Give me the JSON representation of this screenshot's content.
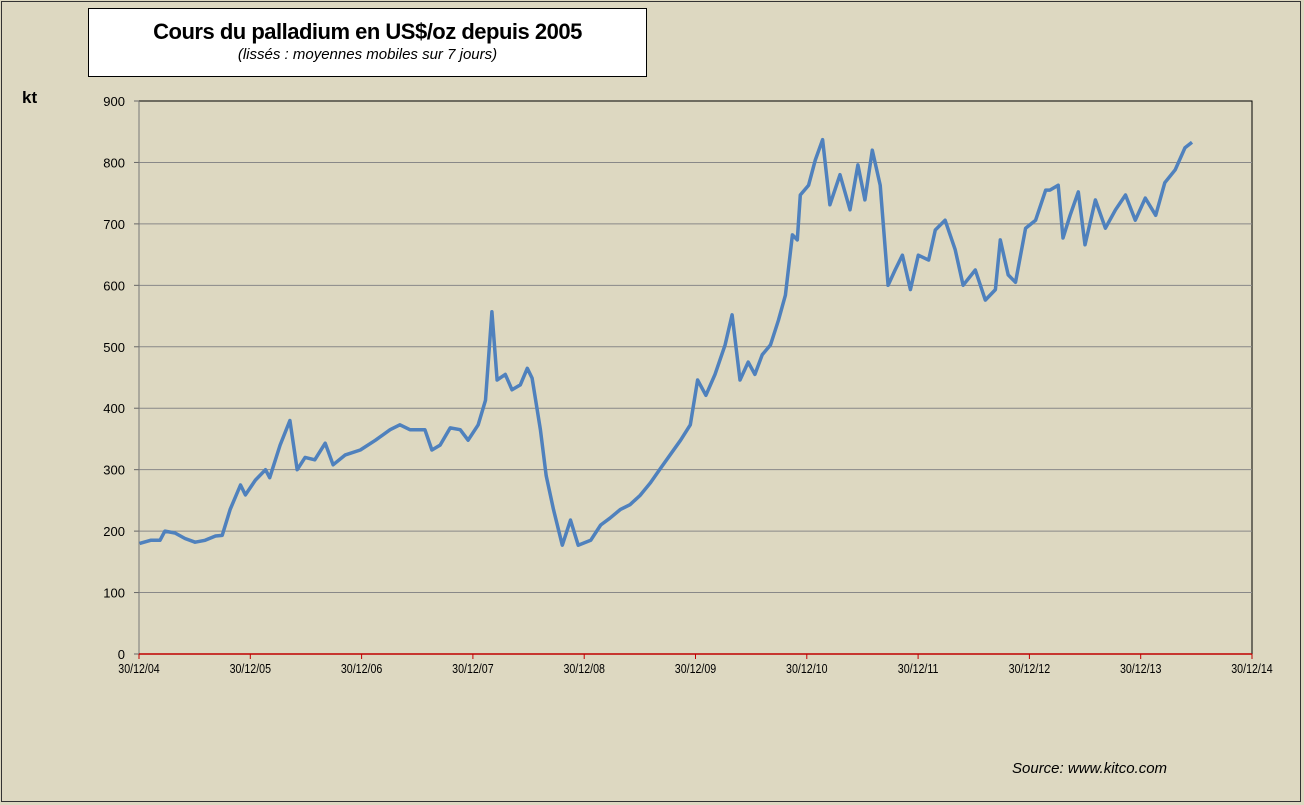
{
  "chart_data": {
    "type": "line",
    "title": "Cours du palladium en US$/oz depuis 2005",
    "subtitle": "(lissés : moyennes mobiles sur 7 jours)",
    "ylabel": "kt",
    "source": "Source:  www.kitco.com",
    "ylim": [
      0,
      900
    ],
    "yticks": [
      "0",
      "100",
      "200",
      "300",
      "400",
      "500",
      "600",
      "700",
      "800",
      "900"
    ],
    "xlim": [
      "2004-12-30",
      "2014-12-30"
    ],
    "xticks": [
      "30/12/04",
      "30/12/05",
      "30/12/06",
      "30/12/07",
      "30/12/08",
      "30/12/09",
      "30/12/10",
      "30/12/11",
      "30/12/12",
      "30/12/13",
      "30/12/14"
    ],
    "grid": true,
    "line_color": "#4f81bd",
    "points": [
      [
        "2005-01-01",
        180
      ],
      [
        "2005-02-06",
        185
      ],
      [
        "2005-03-09",
        185
      ],
      [
        "2005-03-25",
        200
      ],
      [
        "2005-04-27",
        197
      ],
      [
        "2005-05-30",
        188
      ],
      [
        "2005-07-02",
        182
      ],
      [
        "2005-08-04",
        185
      ],
      [
        "2005-09-07",
        192
      ],
      [
        "2005-09-29",
        193
      ],
      [
        "2005-10-25",
        235
      ],
      [
        "2005-11-28",
        275
      ],
      [
        "2005-12-14",
        259
      ],
      [
        "2006-01-16",
        283
      ],
      [
        "2006-02-18",
        300
      ],
      [
        "2006-03-04",
        287
      ],
      [
        "2006-04-07",
        340
      ],
      [
        "2006-05-09",
        380
      ],
      [
        "2006-06-02",
        300
      ],
      [
        "2006-06-28",
        320
      ],
      [
        "2006-07-30",
        316
      ],
      [
        "2006-09-02",
        343
      ],
      [
        "2006-09-28",
        308
      ],
      [
        "2006-11-07",
        324
      ],
      [
        "2006-12-26",
        332
      ],
      [
        "2007-02-14",
        348
      ],
      [
        "2007-04-03",
        365
      ],
      [
        "2007-05-05",
        373
      ],
      [
        "2007-06-07",
        365
      ],
      [
        "2007-07-26",
        365
      ],
      [
        "2007-08-18",
        332
      ],
      [
        "2007-09-14",
        340
      ],
      [
        "2007-10-17",
        368
      ],
      [
        "2007-11-19",
        365
      ],
      [
        "2007-12-15",
        348
      ],
      [
        "2008-01-17",
        373
      ],
      [
        "2008-02-10",
        413
      ],
      [
        "2008-03-02",
        557
      ],
      [
        "2008-03-19",
        446
      ],
      [
        "2008-04-15",
        455
      ],
      [
        "2008-05-07",
        430
      ],
      [
        "2008-06-03",
        438
      ],
      [
        "2008-06-26",
        465
      ],
      [
        "2008-07-12",
        449
      ],
      [
        "2008-08-08",
        365
      ],
      [
        "2008-08-27",
        290
      ],
      [
        "2008-09-20",
        235
      ],
      [
        "2008-10-19",
        177
      ],
      [
        "2008-11-15",
        218
      ],
      [
        "2008-12-10",
        177
      ],
      [
        "2009-01-20",
        185
      ],
      [
        "2009-02-22",
        210
      ],
      [
        "2009-03-24",
        221
      ],
      [
        "2009-04-27",
        235
      ],
      [
        "2009-05-29",
        243
      ],
      [
        "2009-07-01",
        258
      ],
      [
        "2009-08-03",
        278
      ],
      [
        "2009-09-06",
        302
      ],
      [
        "2009-10-15",
        329
      ],
      [
        "2009-11-11",
        348
      ],
      [
        "2009-12-13",
        373
      ],
      [
        "2010-01-06",
        446
      ],
      [
        "2010-02-02",
        421
      ],
      [
        "2010-03-04",
        455
      ],
      [
        "2010-04-06",
        503
      ],
      [
        "2010-04-29",
        552
      ],
      [
        "2010-05-25",
        446
      ],
      [
        "2010-06-21",
        475
      ],
      [
        "2010-07-13",
        455
      ],
      [
        "2010-08-06",
        487
      ],
      [
        "2010-09-02",
        503
      ],
      [
        "2010-09-28",
        543
      ],
      [
        "2010-10-21",
        584
      ],
      [
        "2010-11-13",
        682
      ],
      [
        "2010-11-29",
        674
      ],
      [
        "2010-12-09",
        747
      ],
      [
        "2011-01-05",
        763
      ],
      [
        "2011-01-27",
        804
      ],
      [
        "2011-02-20",
        837
      ],
      [
        "2011-03-16",
        731
      ],
      [
        "2011-04-18",
        780
      ],
      [
        "2011-05-21",
        723
      ],
      [
        "2011-06-16",
        796
      ],
      [
        "2011-07-09",
        739
      ],
      [
        "2011-08-02",
        820
      ],
      [
        "2011-08-28",
        763
      ],
      [
        "2011-09-23",
        600
      ],
      [
        "2011-10-16",
        625
      ],
      [
        "2011-11-09",
        649
      ],
      [
        "2011-12-05",
        593
      ],
      [
        "2011-12-31",
        649
      ],
      [
        "2012-02-03",
        641
      ],
      [
        "2012-02-25",
        690
      ],
      [
        "2012-03-28",
        706
      ],
      [
        "2012-04-30",
        658
      ],
      [
        "2012-05-26",
        600
      ],
      [
        "2012-07-05",
        625
      ],
      [
        "2012-08-07",
        576
      ],
      [
        "2012-09-09",
        593
      ],
      [
        "2012-09-25",
        674
      ],
      [
        "2012-10-21",
        617
      ],
      [
        "2012-11-14",
        605
      ],
      [
        "2012-12-17",
        693
      ],
      [
        "2013-01-19",
        706
      ],
      [
        "2013-02-21",
        755
      ],
      [
        "2013-03-07",
        755
      ],
      [
        "2013-04-03",
        763
      ],
      [
        "2013-04-19",
        677
      ],
      [
        "2013-05-12",
        714
      ],
      [
        "2013-06-08",
        752
      ],
      [
        "2013-06-30",
        666
      ],
      [
        "2013-08-03",
        739
      ],
      [
        "2013-09-05",
        693
      ],
      [
        "2013-10-08",
        723
      ],
      [
        "2013-11-10",
        747
      ],
      [
        "2013-12-12",
        706
      ],
      [
        "2014-01-14",
        742
      ],
      [
        "2014-02-17",
        714
      ],
      [
        "2014-03-19",
        767
      ],
      [
        "2014-04-22",
        788
      ],
      [
        "2014-05-24",
        824
      ],
      [
        "2014-06-16",
        833
      ]
    ]
  }
}
